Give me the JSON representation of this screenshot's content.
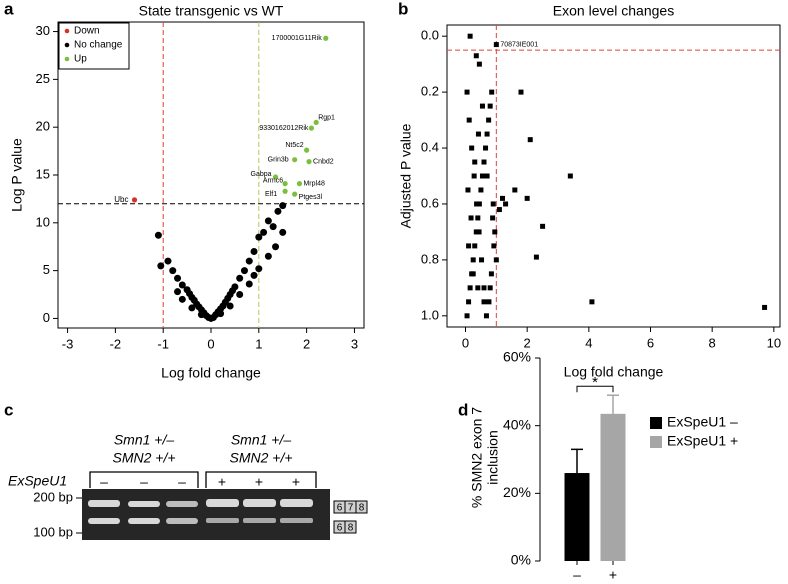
{
  "chart_data": [
    {
      "type": "scatter",
      "panel_label": "a",
      "title": "State transgenic vs WT",
      "xlabel": "Log fold change",
      "ylabel": "Log P value",
      "xlim": [
        -3.2,
        3.2
      ],
      "xticks": [
        -3,
        -2,
        -1,
        0,
        1,
        2,
        3
      ],
      "ylim": [
        -1,
        31
      ],
      "yticks": [
        0,
        5,
        10,
        15,
        20,
        25,
        30
      ],
      "marker": "circle",
      "legend": "top-left",
      "vlines": [
        {
          "value": -1,
          "color": "#e0403a"
        },
        {
          "value": 1,
          "color": "#b9c45a"
        }
      ],
      "hlines": [
        {
          "value": 12,
          "color": "#000000"
        }
      ],
      "series": [
        {
          "name": "Down",
          "color": "#d8312b",
          "x": [
            -1.6
          ],
          "values": [
            12.4
          ],
          "labels": [
            "Ubc"
          ]
        },
        {
          "name": "No change",
          "color": "#000000",
          "x": [
            -1.1,
            -0.9,
            -0.8,
            -0.7,
            -0.6,
            -0.5,
            -0.45,
            -0.4,
            -0.35,
            -0.3,
            -0.25,
            -0.2,
            -0.15,
            -0.1,
            -0.05,
            0,
            0.05,
            0.1,
            0.15,
            0.2,
            0.25,
            0.3,
            0.35,
            0.4,
            0.45,
            0.5,
            0.6,
            0.7,
            0.8,
            0.9,
            1.0,
            1.1,
            1.2,
            1.3,
            1.4,
            1.5,
            -0.6,
            -0.4,
            -0.2,
            0.2,
            0.4,
            0.6,
            0.8,
            1.0,
            1.2,
            -1.05,
            1.35,
            1.5,
            0.9,
            -0.7
          ],
          "values": [
            8.7,
            6.0,
            5.0,
            4.2,
            3.5,
            3.0,
            2.6,
            2.2,
            1.9,
            1.5,
            1.2,
            0.9,
            0.6,
            0.3,
            0.1,
            0,
            0.1,
            0.4,
            0.7,
            1.0,
            1.3,
            1.7,
            2.1,
            2.5,
            2.9,
            3.3,
            4.2,
            5.0,
            6.0,
            7.0,
            8.5,
            9.0,
            10.2,
            9.6,
            11.2,
            11.8,
            2.0,
            1.1,
            0.4,
            0.5,
            1.3,
            2.5,
            3.6,
            5.2,
            6.5,
            5.5,
            7.5,
            9.0,
            4.5,
            2.8
          ]
        },
        {
          "name": "Up",
          "color": "#7cbf3c",
          "x": [
            2.4,
            2.2,
            2.1,
            2.0,
            1.75,
            2.05,
            1.35,
            1.55,
            1.85,
            1.55,
            1.75
          ],
          "values": [
            29.3,
            20.5,
            19.9,
            17.6,
            16.6,
            16.4,
            14.8,
            14.1,
            14.1,
            13.3,
            13.0
          ],
          "labels": [
            "1700001G11Rik",
            "Rgp1",
            "9330162012Rik",
            "Nt5c2",
            "Grin3b",
            "Cnbd2",
            "Gabpa",
            "Armc6",
            "Mrpl48",
            "Elf1",
            "Ptges3l"
          ]
        }
      ]
    },
    {
      "type": "scatter",
      "panel_label": "b",
      "title": "Exon level changes",
      "xlabel": "Log fold change",
      "ylabel": "Adjusted P value",
      "xlim": [
        -0.6,
        10.2
      ],
      "xticks": [
        0,
        2,
        4,
        6,
        8,
        10
      ],
      "ylim": [
        -0.04,
        1.04
      ],
      "y_inverted": true,
      "yticks": [
        {
          "value": 0,
          "label": "0.0"
        },
        0.2,
        0.4,
        0.6,
        0.8,
        {
          "value": 1,
          "label": "1.0"
        }
      ],
      "marker": "square",
      "vlines": [
        {
          "value": 1,
          "color": "#e0403a"
        }
      ],
      "hlines": [
        {
          "value": 0.05,
          "color": "#e0403a"
        }
      ],
      "series": [
        {
          "color": "#000000",
          "x": [
            0.05,
            0.1,
            0.15,
            0.2,
            0.25,
            0.3,
            0.35,
            0.4,
            0.45,
            0.5,
            0.55,
            0.6,
            0.65,
            0.7,
            0.75,
            0.8,
            0.85,
            0.9,
            0.95,
            1.0,
            0.05,
            0.12,
            0.2,
            0.28,
            0.36,
            0.44,
            0.52,
            0.6,
            0.68,
            0.76,
            0.84,
            0.92,
            0.08,
            0.18,
            0.3,
            0.42,
            0.55,
            0.7,
            0.88,
            0.1,
            0.25,
            0.4,
            0.6,
            0.8,
            1.1,
            1.2,
            1.3,
            1.6,
            1.8,
            2.0,
            2.1,
            2.5,
            2.3,
            3.4,
            4.1,
            9.7,
            0.15,
            1.0,
            0.35,
            0.45
          ],
          "values": [
            1.0,
            0.95,
            0.9,
            0.85,
            0.8,
            0.75,
            0.7,
            0.65,
            0.6,
            0.55,
            0.5,
            0.45,
            0.4,
            0.35,
            0.3,
            0.25,
            0.2,
            0.6,
            0.7,
            0.8,
            0.2,
            0.3,
            0.4,
            0.5,
            0.6,
            0.7,
            0.8,
            0.9,
            1.0,
            0.95,
            0.85,
            0.75,
            0.55,
            0.65,
            0.45,
            0.35,
            0.25,
            0.5,
            0.65,
            0.75,
            0.85,
            0.9,
            0.95,
            0.9,
            0.62,
            0.58,
            0.6,
            0.55,
            0.2,
            0.58,
            0.37,
            0.68,
            0.79,
            0.5,
            0.95,
            0.97,
            0.0,
            0.03,
            0.07,
            0.1
          ],
          "labels": [
            null,
            null,
            null,
            null,
            null,
            null,
            null,
            null,
            null,
            null,
            null,
            null,
            null,
            null,
            null,
            null,
            null,
            null,
            null,
            null,
            null,
            null,
            null,
            null,
            null,
            null,
            null,
            null,
            null,
            null,
            null,
            null,
            null,
            null,
            null,
            null,
            null,
            null,
            null,
            null,
            null,
            null,
            null,
            null,
            null,
            null,
            null,
            null,
            null,
            null,
            null,
            null,
            null,
            null,
            null,
            null,
            null,
            "70873IE001",
            null,
            null
          ]
        }
      ]
    },
    {
      "type": "bar",
      "panel_label": "d",
      "ylabel": [
        "% SMN2 exon 7",
        "inclusion"
      ],
      "categories": [
        "–",
        "+"
      ],
      "ylim": [
        0,
        60
      ],
      "yticks": [
        {
          "value": 0,
          "label": "0%"
        },
        {
          "value": 20,
          "label": "20%"
        },
        {
          "value": 40,
          "label": "40%"
        },
        {
          "value": 60,
          "label": "60%"
        }
      ],
      "significance": "*",
      "legend": "top-right",
      "series": [
        {
          "name": "ExSpeU1 –",
          "color": "#000000",
          "values": [
            26,
            null
          ],
          "errors": [
            7,
            null
          ]
        },
        {
          "name": "ExSpeU1 +",
          "color": "#a6a6a6",
          "values": [
            null,
            43.5
          ],
          "errors": [
            null,
            5.5
          ]
        }
      ]
    }
  ],
  "gel": {
    "panel_label": "c",
    "groups": [
      [
        "Smn1 +/–",
        "SMN2 +/+"
      ],
      [
        "Smn1 +/–",
        "SMN2 +/+"
      ]
    ],
    "row_label": "ExSpeU1",
    "lanes": [
      "–",
      "–",
      "–",
      "+",
      "+",
      "+"
    ],
    "markers": [
      "200 bp",
      "100 bp"
    ],
    "upper_band": [
      "6",
      "7",
      "8"
    ],
    "lower_band": [
      "6",
      "8"
    ]
  }
}
